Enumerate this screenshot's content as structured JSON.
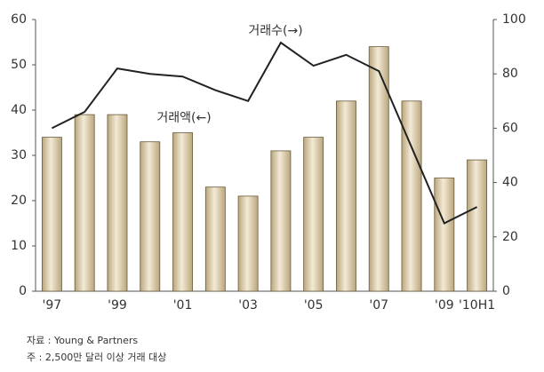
{
  "chart_data": {
    "type": "bar",
    "categories": [
      "'97",
      null,
      "'99",
      null,
      "'01",
      null,
      "'03",
      null,
      "'05",
      null,
      "'07",
      null,
      "'09",
      "'10H1"
    ],
    "series": [
      {
        "name": "거래액(←)",
        "type": "bar",
        "axis": "y",
        "color": "#d9cba9",
        "values": [
          34,
          39,
          39,
          33,
          35,
          23,
          21,
          31,
          34,
          42,
          54,
          42,
          25,
          29
        ]
      },
      {
        "name": "거래수(→)",
        "type": "line",
        "axis": "y2",
        "color": "#222222",
        "values": [
          60,
          66,
          82,
          80,
          79,
          74,
          70,
          91.5,
          83,
          87,
          81,
          53,
          25,
          31
        ]
      }
    ],
    "ylim": [
      0,
      60
    ],
    "yticks": [
      0,
      10,
      20,
      30,
      40,
      50,
      60
    ],
    "y2lim": [
      0,
      100
    ],
    "y2ticks": [
      0,
      20,
      40,
      60,
      80,
      100
    ],
    "grid": false,
    "notes": [
      "자료 : Young & Partners",
      "주 : 2,500만 달러 이상 거래 대상"
    ]
  }
}
